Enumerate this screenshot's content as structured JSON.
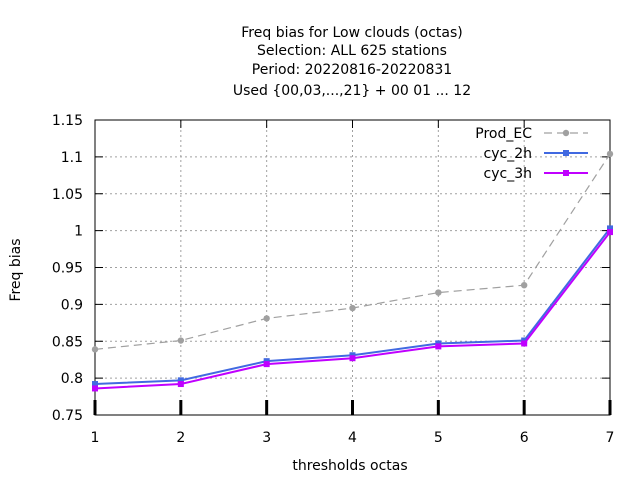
{
  "chart_data": {
    "type": "line",
    "title_lines": [
      "Freq bias  for Low clouds (octas)",
      "Selection: ALL    625 stations",
      "Period: 20220816-20220831",
      "Used {00,03,...,21} + 00 01 ... 12"
    ],
    "xlabel": "thresholds octas",
    "ylabel": "Freq bias",
    "x": [
      1,
      2,
      3,
      4,
      5,
      6,
      7
    ],
    "xlim": [
      1,
      7
    ],
    "ylim": [
      0.75,
      1.15
    ],
    "yticks": [
      0.75,
      0.8,
      0.85,
      0.9,
      0.95,
      1,
      1.05,
      1.1,
      1.15
    ],
    "ytick_labels": [
      "0.75",
      "0.8",
      "0.85",
      "0.9",
      "0.95",
      "1",
      "1.05",
      "1.1",
      "1.15"
    ],
    "xtick_labels": [
      "1",
      "2",
      "3",
      "4",
      "5",
      "6",
      "7"
    ],
    "grid": true,
    "legend_position": "top-right",
    "series": [
      {
        "name": "Prod_EC",
        "color": "#a0a0a0",
        "dashed": true,
        "values": [
          0.839,
          0.851,
          0.881,
          0.895,
          0.916,
          0.926,
          1.104
        ]
      },
      {
        "name": "cyc_2h",
        "color": "#4169e1",
        "dashed": false,
        "values": [
          0.792,
          0.797,
          0.823,
          0.831,
          0.847,
          0.851,
          1.003
        ]
      },
      {
        "name": "cyc_3h",
        "color": "#c000ff",
        "dashed": false,
        "values": [
          0.786,
          0.792,
          0.819,
          0.827,
          0.843,
          0.847,
          0.998
        ]
      }
    ]
  }
}
